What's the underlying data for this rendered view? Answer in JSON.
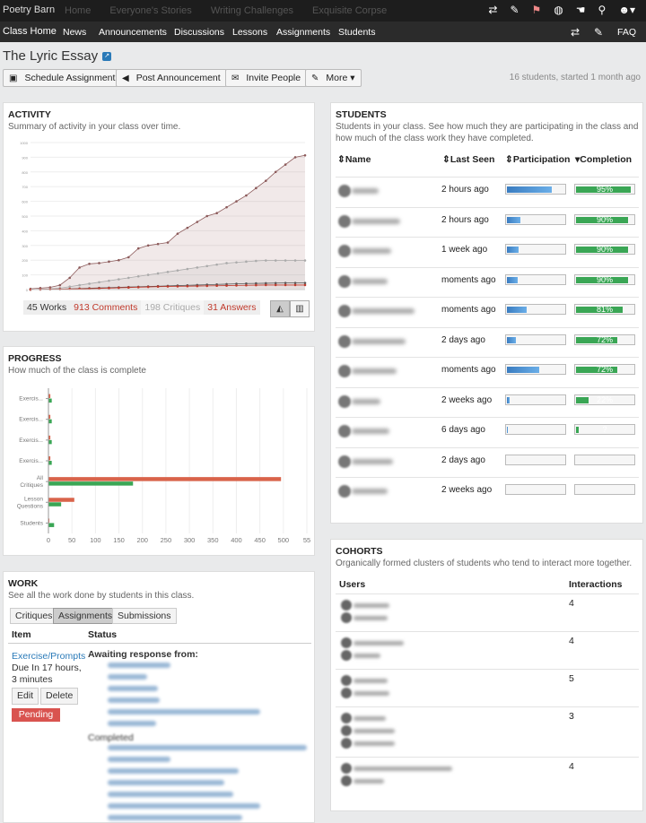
{
  "topbar": {
    "brand": "Poetry Barn",
    "links": [
      "Home",
      "Everyone's Stories",
      "Writing Challenges",
      "Exquisite Corpse"
    ]
  },
  "nav": {
    "items": [
      "Class Home",
      "News",
      "Announcements",
      "Discussions",
      "Lessons",
      "Assignments",
      "Students"
    ],
    "faq": "FAQ"
  },
  "page": {
    "title": "The Lyric Essay",
    "meta": "16 students, started 1 month ago"
  },
  "actions": {
    "schedule": "Schedule Assignment",
    "post": "Post Announcement",
    "invite": "Invite People",
    "more": "More"
  },
  "activity": {
    "title": "ACTIVITY",
    "subtitle": "Summary of activity in your class over time.",
    "legend": {
      "works": "45 Works",
      "comments": "913 Comments",
      "critiques": "198 Critiques",
      "answers": "31 Answers"
    },
    "y_ticks": [
      "1000",
      "900",
      "800",
      "700",
      "600",
      "500",
      "400",
      "300",
      "200",
      "100",
      "0"
    ],
    "chart_type": "area"
  },
  "progress": {
    "title": "PROGRESS",
    "subtitle": "How much of the class is complete",
    "categories": [
      "Exercis...",
      "Exercis...",
      "Exercis...",
      "Exercis...",
      "All Critiques",
      "Lesson Questions",
      "Students"
    ],
    "x_ticks": [
      "0",
      "50",
      "100",
      "150",
      "200",
      "250",
      "300",
      "350",
      "400",
      "450",
      "500",
      "55"
    ]
  },
  "chart_data": [
    {
      "type": "area",
      "title": "ACTIVITY",
      "ylim": [
        0,
        1000
      ],
      "series": [
        {
          "name": "Comments",
          "values": [
            5,
            10,
            15,
            30,
            80,
            150,
            175,
            180,
            190,
            200,
            220,
            280,
            300,
            310,
            320,
            380,
            420,
            460,
            500,
            520,
            560,
            600,
            640,
            690,
            740,
            800,
            850,
            900,
            913
          ]
        },
        {
          "name": "Critiques",
          "values": [
            0,
            2,
            5,
            10,
            20,
            30,
            40,
            50,
            60,
            70,
            80,
            90,
            100,
            110,
            120,
            130,
            140,
            150,
            160,
            170,
            180,
            185,
            190,
            195,
            198,
            198,
            198,
            198,
            198
          ]
        },
        {
          "name": "Works",
          "values": [
            0,
            1,
            2,
            3,
            5,
            7,
            9,
            11,
            13,
            15,
            17,
            19,
            21,
            23,
            25,
            27,
            29,
            31,
            33,
            35,
            37,
            39,
            41,
            42,
            43,
            44,
            45,
            45,
            45
          ]
        },
        {
          "name": "Answers",
          "values": [
            0,
            1,
            2,
            3,
            4,
            5,
            6,
            8,
            10,
            12,
            14,
            16,
            18,
            20,
            21,
            22,
            23,
            24,
            25,
            26,
            27,
            28,
            29,
            30,
            31,
            31,
            31,
            31,
            31
          ]
        }
      ]
    },
    {
      "type": "bar",
      "title": "PROGRESS",
      "categories": [
        "Exercis...",
        "Exercis...",
        "Exercis...",
        "Exercis...",
        "All Critiques",
        "Lesson Questions",
        "Students"
      ],
      "series": [
        {
          "name": "red",
          "values": [
            4,
            4,
            4,
            4,
            495,
            55,
            2
          ]
        },
        {
          "name": "green",
          "values": [
            7,
            7,
            7,
            7,
            180,
            27,
            12
          ]
        }
      ],
      "xlim": [
        0,
        550
      ]
    }
  ],
  "work": {
    "title": "WORK",
    "subtitle": "See all the work done by students in this class.",
    "tabs": [
      "Critiques",
      "Assignments",
      "Submissions"
    ],
    "col_item": "Item",
    "col_status": "Status",
    "item_link": "Exercise/Prompts",
    "due": "Due In 17 hours, 3 minutes",
    "edit": "Edit",
    "delete": "Delete",
    "pending": "Pending",
    "awaiting": "Awaiting response from:",
    "completed": "Completed"
  },
  "students": {
    "title": "STUDENTS",
    "subtitle": "Students in your class. See how much they are participating in the class and how much of the class work they have completed.",
    "cols": {
      "name": "Name",
      "last_seen": "Last Seen",
      "participation": "Participation",
      "completion": "Completion"
    },
    "rows": [
      {
        "last_seen": "2 hours ago",
        "participation": 78,
        "completion": "95%",
        "completion_pct": 95
      },
      {
        "last_seen": "2 hours ago",
        "participation": 24,
        "completion": "90%",
        "completion_pct": 90
      },
      {
        "last_seen": "1 week ago",
        "participation": 20,
        "completion": "90%",
        "completion_pct": 90
      },
      {
        "last_seen": "moments ago",
        "participation": 18,
        "completion": "90%",
        "completion_pct": 90
      },
      {
        "last_seen": "moments ago",
        "participation": 35,
        "completion": "81%",
        "completion_pct": 81
      },
      {
        "last_seen": "2 days ago",
        "participation": 16,
        "completion": "72%",
        "completion_pct": 72
      },
      {
        "last_seen": "moments ago",
        "participation": 56,
        "completion": "72%",
        "completion_pct": 72
      },
      {
        "last_seen": "2 weeks ago",
        "participation": 4,
        "completion": "22%",
        "completion_pct": 22
      },
      {
        "last_seen": "6 days ago",
        "participation": 2,
        "completion": "?",
        "completion_pct": 4
      },
      {
        "last_seen": "2 days ago",
        "participation": 0,
        "completion": "",
        "completion_pct": 0
      },
      {
        "last_seen": "2 weeks ago",
        "participation": 0,
        "completion": "",
        "completion_pct": 0
      }
    ]
  },
  "cohorts": {
    "title": "COHORTS",
    "subtitle": "Organically formed clusters of students who tend to interact more together.",
    "cols": {
      "users": "Users",
      "interactions": "Interactions"
    },
    "rows": [
      {
        "interactions": "4"
      },
      {
        "interactions": "4"
      },
      {
        "interactions": "5"
      },
      {
        "interactions": "3"
      },
      {
        "interactions": "4"
      }
    ]
  },
  "colors": {
    "accent": "#2a7ab8",
    "completion": "#3aa655",
    "participation": "#4a90d0",
    "comments": "#c0392b",
    "pending": "#d9534f"
  }
}
